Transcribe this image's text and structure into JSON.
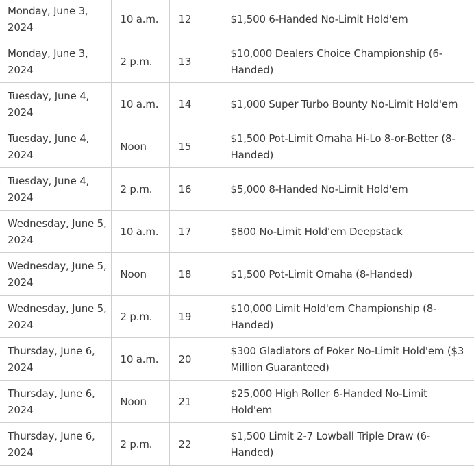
{
  "rows": [
    {
      "date": "Monday, June 3, 2024",
      "time": "10 a.m.",
      "event": "12",
      "name": "$1,500 6-Handed No-Limit Hold'em"
    },
    {
      "date": "Monday, June 3, 2024",
      "time": "2 p.m.",
      "event": "13",
      "name": "$10,000 Dealers Choice Championship (6-Handed)"
    },
    {
      "date": "Tuesday, June 4, 2024",
      "time": "10 a.m.",
      "event": "14",
      "name": "$1,000 Super Turbo Bounty No-Limit Hold'em"
    },
    {
      "date": "Tuesday, June 4, 2024",
      "time": "Noon",
      "event": "15",
      "name": "$1,500 Pot-Limit Omaha Hi-Lo 8-or-Better (8-Handed)"
    },
    {
      "date": "Tuesday, June 4, 2024",
      "time": "2 p.m.",
      "event": "16",
      "name": "$5,000 8-Handed No-Limit Hold'em"
    },
    {
      "date": "Wednesday, June 5, 2024",
      "time": "10 a.m.",
      "event": "17",
      "name": "$800 No-Limit Hold'em Deepstack"
    },
    {
      "date": "Wednesday, June 5, 2024",
      "time": "Noon",
      "event": "18",
      "name": "$1,500 Pot-Limit Omaha (8-Handed)"
    },
    {
      "date": "Wednesday, June 5, 2024",
      "time": "2 p.m.",
      "event": "19",
      "name": "$10,000 Limit Hold'em Championship (8-Handed)"
    },
    {
      "date": "Thursday, June 6, 2024",
      "time": "10 a.m.",
      "event": "20",
      "name": "$300 Gladiators of Poker No-Limit Hold'em ($3 Million Guaranteed)"
    },
    {
      "date": "Thursday, June 6, 2024",
      "time": "Noon",
      "event": "21",
      "name": "$25,000 High Roller 6-Handed No-Limit Hold'em"
    },
    {
      "date": "Thursday, June 6, 2024",
      "time": "2 p.m.",
      "event": "22",
      "name": "$1,500 Limit 2-7 Lowball Triple Draw (6-Handed)"
    }
  ]
}
